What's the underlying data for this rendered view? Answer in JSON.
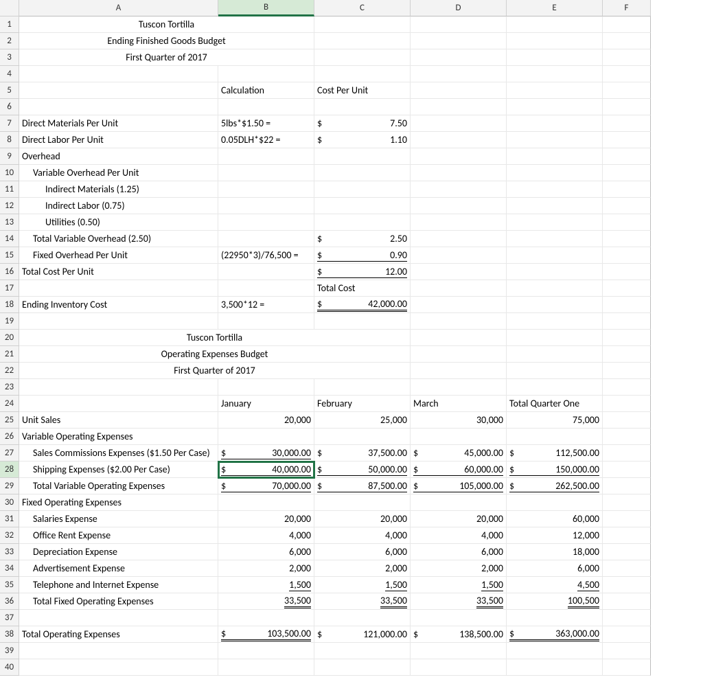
{
  "columns": [
    "A",
    "B",
    "C",
    "D",
    "E",
    "F"
  ],
  "rowCount": 40,
  "selectedColumn": "B",
  "activeCell": {
    "row": 28,
    "col": "B"
  },
  "colors": {
    "accent": "#217346",
    "headerBg": "#f3f3f3",
    "gridLine": "#e8e8e8",
    "headerBorder": "#d0d0d0"
  },
  "rows": {
    "1": {
      "A": {
        "text": "Tuscon Tortilla",
        "center": true,
        "span": 2
      }
    },
    "2": {
      "A": {
        "text": "Ending Finished Goods Budget",
        "center": true,
        "span": 2
      }
    },
    "3": {
      "A": {
        "text": "First Quarter of 2017",
        "center": true,
        "span": 2
      }
    },
    "5": {
      "B": {
        "text": "Calculation"
      },
      "C": {
        "text": "Cost Per Unit"
      }
    },
    "7": {
      "A": {
        "text": "Direct Materials Per Unit"
      },
      "B": {
        "text": "5lbs*$1.50 ="
      },
      "C": {
        "money": [
          "$",
          "7.50"
        ]
      }
    },
    "8": {
      "A": {
        "text": "Direct Labor Per Unit"
      },
      "B": {
        "text": "0.05DLH*$22 ="
      },
      "C": {
        "money": [
          "$",
          "1.10"
        ]
      }
    },
    "9": {
      "A": {
        "text": "Overhead"
      }
    },
    "10": {
      "A": {
        "text": "Variable Overhead Per Unit",
        "indent": 1
      }
    },
    "11": {
      "A": {
        "text": "Indirect Materials (1.25)",
        "indent": 2
      }
    },
    "12": {
      "A": {
        "text": "Indirect Labor (0.75)",
        "indent": 2
      }
    },
    "13": {
      "A": {
        "text": "Utilities (0.50)",
        "indent": 2
      }
    },
    "14": {
      "A": {
        "text": "Total Variable Overhead (2.50)",
        "indent": 1
      },
      "C": {
        "money": [
          "$",
          "2.50"
        ]
      }
    },
    "15": {
      "A": {
        "text": "Fixed Overhead Per Unit",
        "indent": 1
      },
      "B": {
        "text": "(22950*3)/76,500 ="
      },
      "C": {
        "money": [
          "$",
          "0.90"
        ],
        "underline": "single"
      }
    },
    "16": {
      "A": {
        "text": "Total Cost Per Unit"
      },
      "C": {
        "money": [
          "$",
          "12.00"
        ],
        "underline": "single"
      }
    },
    "17": {
      "C": {
        "text": "Total Cost"
      }
    },
    "18": {
      "A": {
        "text": "Ending Inventory Cost"
      },
      "B": {
        "text": "3,500*12 ="
      },
      "C": {
        "money": [
          "$",
          "42,000.00"
        ],
        "underline": "double"
      }
    },
    "20": {
      "A": {
        "text": "Tuscon Tortilla",
        "center": true,
        "span": 3
      }
    },
    "21": {
      "A": {
        "text": "Operating Expenses Budget",
        "center": true,
        "span": 3
      }
    },
    "22": {
      "A": {
        "text": "First Quarter of 2017",
        "center": true,
        "span": 3
      }
    },
    "24": {
      "B": {
        "text": "January"
      },
      "C": {
        "text": "February"
      },
      "D": {
        "text": "March"
      },
      "E": {
        "text": "Total Quarter One"
      }
    },
    "25": {
      "A": {
        "text": "Unit Sales"
      },
      "B": {
        "right": "20,000"
      },
      "C": {
        "right": "25,000"
      },
      "D": {
        "right": "30,000"
      },
      "E": {
        "right": "75,000"
      }
    },
    "26": {
      "A": {
        "text": "Variable Operating Expenses"
      }
    },
    "27": {
      "A": {
        "text": "Sales Commissions Expenses ($1.50 Per Case)",
        "indent": 1
      },
      "B": {
        "money": [
          "$",
          "30,000.00"
        ],
        "underline": "single"
      },
      "C": {
        "money": [
          "$",
          "37,500.00"
        ]
      },
      "D": {
        "money": [
          "$",
          "45,000.00"
        ]
      },
      "E": {
        "money": [
          "$",
          "112,500.00"
        ]
      }
    },
    "28": {
      "A": {
        "text": "Shipping Expenses ($2.00 Per Case)",
        "indent": 1
      },
      "B": {
        "money": [
          "$",
          "40,000.00"
        ],
        "underline": "single"
      },
      "C": {
        "money": [
          "$",
          "50,000.00"
        ],
        "underline": "single"
      },
      "D": {
        "money": [
          "$",
          "60,000.00"
        ],
        "underline": "single"
      },
      "E": {
        "money": [
          "$",
          "150,000.00"
        ],
        "underline": "single"
      }
    },
    "29": {
      "A": {
        "text": "Total Variable Operating Expenses",
        "indent": 1
      },
      "B": {
        "money": [
          "$",
          "70,000.00"
        ],
        "underline": "single"
      },
      "C": {
        "money": [
          "$",
          "87,500.00"
        ],
        "underline": "single"
      },
      "D": {
        "money": [
          "$",
          "105,000.00"
        ],
        "underline": "single"
      },
      "E": {
        "money": [
          "$",
          "262,500.00"
        ],
        "underline": "single"
      }
    },
    "30": {
      "A": {
        "text": "Fixed Operating Expenses"
      }
    },
    "31": {
      "A": {
        "text": "Salaries Expense",
        "indent": 1
      },
      "B": {
        "right": "20,000"
      },
      "C": {
        "right": "20,000"
      },
      "D": {
        "right": "20,000"
      },
      "E": {
        "right": "60,000"
      }
    },
    "32": {
      "A": {
        "text": "Office Rent Expense",
        "indent": 1
      },
      "B": {
        "right": "4,000"
      },
      "C": {
        "right": "4,000"
      },
      "D": {
        "right": "4,000"
      },
      "E": {
        "right": "12,000"
      }
    },
    "33": {
      "A": {
        "text": "Depreciation Expense",
        "indent": 1
      },
      "B": {
        "right": "6,000"
      },
      "C": {
        "right": "6,000"
      },
      "D": {
        "right": "6,000"
      },
      "E": {
        "right": "18,000"
      }
    },
    "34": {
      "A": {
        "text": "Advertisement Expense",
        "indent": 1
      },
      "B": {
        "right": "2,000"
      },
      "C": {
        "right": "2,000"
      },
      "D": {
        "right": "2,000"
      },
      "E": {
        "right": "6,000"
      }
    },
    "35": {
      "A": {
        "text": "Telephone and Internet Expense",
        "indent": 1
      },
      "B": {
        "right": "1,500",
        "underline": "single"
      },
      "C": {
        "right": "1,500",
        "underline": "single"
      },
      "D": {
        "right": "1,500",
        "underline": "single"
      },
      "E": {
        "right": "4,500",
        "underline": "single"
      }
    },
    "36": {
      "A": {
        "text": "Total Fixed Operating Expenses",
        "indent": 1
      },
      "B": {
        "right": "33,500",
        "underline": "double"
      },
      "C": {
        "right": "33,500",
        "underline": "double"
      },
      "D": {
        "right": "33,500",
        "underline": "double"
      },
      "E": {
        "right": "100,500",
        "underline": "double"
      }
    },
    "38": {
      "A": {
        "text": "Total Operating Expenses"
      },
      "B": {
        "money": [
          "$",
          "103,500.00"
        ],
        "underline": "double"
      },
      "C": {
        "money": [
          "$",
          "121,000.00"
        ]
      },
      "D": {
        "money": [
          "$",
          "138,500.00"
        ]
      },
      "E": {
        "money": [
          "$",
          "363,000.00"
        ],
        "underline": "double"
      }
    }
  }
}
